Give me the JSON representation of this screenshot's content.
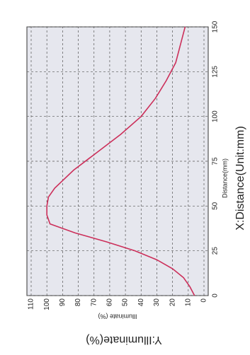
{
  "chart_data": {
    "type": "line",
    "x_label": "Distance(mm)",
    "y_label": "Illuminate (%)",
    "annotations": [
      "Y:Illuminate(%)",
      "X:Distance(Unit:mm)"
    ],
    "x": [
      0,
      5,
      10,
      15,
      20,
      25,
      30,
      35,
      40,
      45,
      50,
      55,
      60,
      70,
      80,
      90,
      100,
      110,
      120,
      130,
      140,
      150
    ],
    "values": [
      6,
      9,
      13,
      20,
      30,
      44,
      62,
      82,
      98,
      100,
      100,
      99,
      95,
      83,
      68,
      53,
      40,
      31,
      24,
      18,
      15,
      12
    ],
    "color": "#cc2f5a",
    "xlim": [
      0,
      150
    ],
    "xticks": [
      0,
      25,
      50,
      75,
      100,
      125,
      150
    ],
    "ylim": [
      0,
      110
    ],
    "yticks": [
      0,
      10,
      20,
      30,
      40,
      50,
      60,
      70,
      80,
      90,
      100,
      110
    ],
    "grid": true
  }
}
